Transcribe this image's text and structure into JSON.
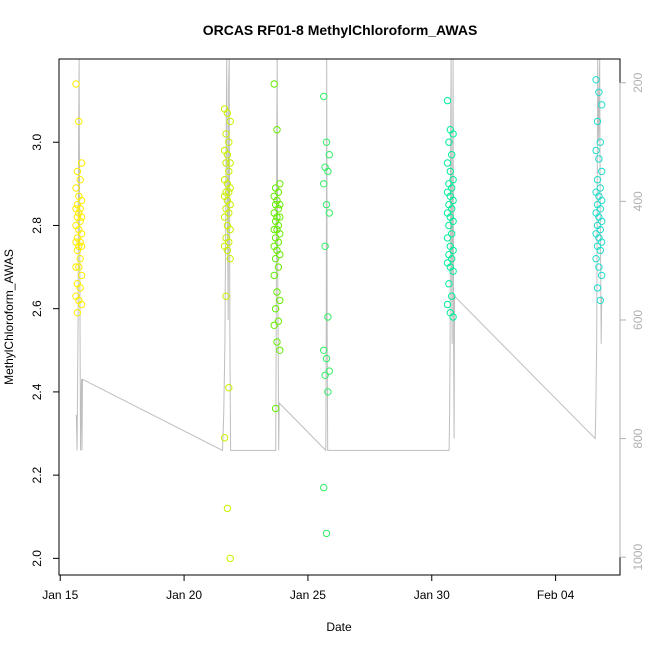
{
  "chart_data": {
    "type": "scatter",
    "title": "ORCAS RF01-8 MethylChloroform_AWAS",
    "xlabel": "Date",
    "ylabel": "MethylChloroform_AWAS",
    "x_ticks": [
      "Jan 15",
      "Jan 20",
      "Jan 25",
      "Jan 30",
      "Feb 04"
    ],
    "x_tick_days": [
      0,
      5,
      10,
      15,
      20
    ],
    "xlim_days": [
      -0.05,
      22.6
    ],
    "y_ticks": [
      2.0,
      2.2,
      2.4,
      2.6,
      2.8,
      3.0
    ],
    "ylim": [
      1.96,
      3.2
    ],
    "y2_ticks": [
      200,
      400,
      600,
      800,
      1000
    ],
    "y2lim": [
      1030,
      160
    ],
    "y2_reversed": true,
    "grid": false,
    "legend": "none",
    "line_color": "#bebebe",
    "flights": [
      {
        "day": 0.75,
        "color": "#ffee00",
        "values": [
          3.14,
          3.05,
          2.95,
          2.93,
          2.91,
          2.89,
          2.87,
          2.86,
          2.85,
          2.84,
          2.84,
          2.83,
          2.82,
          2.82,
          2.81,
          2.8,
          2.79,
          2.78,
          2.77,
          2.76,
          2.76,
          2.75,
          2.75,
          2.74,
          2.72,
          2.7,
          2.7,
          2.68,
          2.66,
          2.65,
          2.63,
          2.62,
          2.61,
          2.59
        ]
      },
      {
        "day": 6.75,
        "color": "#ccf000",
        "values": [
          3.08,
          3.07,
          3.05,
          3.02,
          3.0,
          2.98,
          2.97,
          2.95,
          2.95,
          2.93,
          2.91,
          2.9,
          2.89,
          2.88,
          2.88,
          2.87,
          2.86,
          2.85,
          2.84,
          2.83,
          2.82,
          2.8,
          2.79,
          2.77,
          2.76,
          2.75,
          2.74,
          2.72,
          2.63,
          2.41,
          2.29,
          2.12,
          2.0
        ]
      },
      {
        "day": 8.75,
        "color": "#66ee00",
        "values": [
          3.14,
          3.03,
          2.9,
          2.89,
          2.88,
          2.87,
          2.86,
          2.85,
          2.85,
          2.84,
          2.83,
          2.82,
          2.82,
          2.81,
          2.8,
          2.79,
          2.79,
          2.78,
          2.77,
          2.76,
          2.75,
          2.74,
          2.73,
          2.72,
          2.7,
          2.68,
          2.64,
          2.62,
          2.6,
          2.57,
          2.56,
          2.52,
          2.5,
          2.36
        ]
      },
      {
        "day": 10.75,
        "color": "#33ee66",
        "values": [
          3.11,
          3.0,
          2.97,
          2.94,
          2.93,
          2.9,
          2.85,
          2.83,
          2.75,
          2.58,
          2.5,
          2.48,
          2.45,
          2.44,
          2.4,
          2.17,
          2.06
        ]
      },
      {
        "day": 15.75,
        "color": "#00ee99",
        "values": [
          3.1,
          3.03,
          3.02,
          3.0,
          2.97,
          2.95,
          2.93,
          2.91,
          2.9,
          2.89,
          2.88,
          2.87,
          2.86,
          2.85,
          2.84,
          2.83,
          2.82,
          2.81,
          2.8,
          2.78,
          2.77,
          2.75,
          2.74,
          2.73,
          2.72,
          2.71,
          2.7,
          2.69,
          2.66,
          2.63,
          2.61,
          2.59,
          2.58
        ]
      },
      {
        "day": 21.75,
        "color": "#22ddcc",
        "values": [
          3.15,
          3.12,
          3.09,
          3.05,
          3.0,
          2.98,
          2.96,
          2.93,
          2.91,
          2.89,
          2.88,
          2.87,
          2.86,
          2.85,
          2.84,
          2.83,
          2.82,
          2.81,
          2.8,
          2.79,
          2.78,
          2.77,
          2.76,
          2.75,
          2.74,
          2.72,
          2.7,
          2.68,
          2.65,
          2.62
        ]
      }
    ],
    "pressure_track": [
      [
        0.65,
        760
      ],
      [
        0.68,
        820
      ],
      [
        0.7,
        700
      ],
      [
        0.72,
        600
      ],
      [
        0.74,
        300
      ],
      [
        0.76,
        160
      ],
      [
        0.78,
        400
      ],
      [
        0.8,
        640
      ],
      [
        0.82,
        820
      ],
      [
        0.84,
        760
      ],
      [
        0.86,
        700
      ],
      [
        0.88,
        820
      ],
      [
        0.9,
        700
      ],
      [
        6.55,
        820
      ],
      [
        6.6,
        760
      ],
      [
        6.65,
        640
      ],
      [
        6.7,
        300
      ],
      [
        6.72,
        160
      ],
      [
        6.75,
        400
      ],
      [
        6.78,
        600
      ],
      [
        6.8,
        200
      ],
      [
        6.82,
        160
      ],
      [
        6.85,
        640
      ],
      [
        6.88,
        820
      ],
      [
        8.7,
        820
      ],
      [
        8.72,
        640
      ],
      [
        8.74,
        300
      ],
      [
        8.76,
        160
      ],
      [
        8.78,
        500
      ],
      [
        8.8,
        640
      ],
      [
        8.82,
        820
      ],
      [
        8.84,
        740
      ],
      [
        10.72,
        820
      ],
      [
        10.74,
        640
      ],
      [
        10.76,
        160
      ],
      [
        10.78,
        640
      ],
      [
        10.8,
        820
      ],
      [
        15.7,
        820
      ],
      [
        15.72,
        760
      ],
      [
        15.74,
        640
      ],
      [
        15.76,
        300
      ],
      [
        15.78,
        160
      ],
      [
        15.8,
        500
      ],
      [
        15.82,
        640
      ],
      [
        15.84,
        400
      ],
      [
        15.86,
        160
      ],
      [
        15.88,
        640
      ],
      [
        15.9,
        800
      ],
      [
        15.92,
        560
      ],
      [
        21.6,
        800
      ],
      [
        21.62,
        760
      ],
      [
        21.64,
        700
      ],
      [
        21.66,
        640
      ],
      [
        21.68,
        400
      ],
      [
        21.7,
        160
      ],
      [
        21.74,
        300
      ],
      [
        21.78,
        160
      ],
      [
        21.8,
        400
      ],
      [
        21.84,
        640
      ],
      [
        21.86,
        560
      ]
    ]
  }
}
